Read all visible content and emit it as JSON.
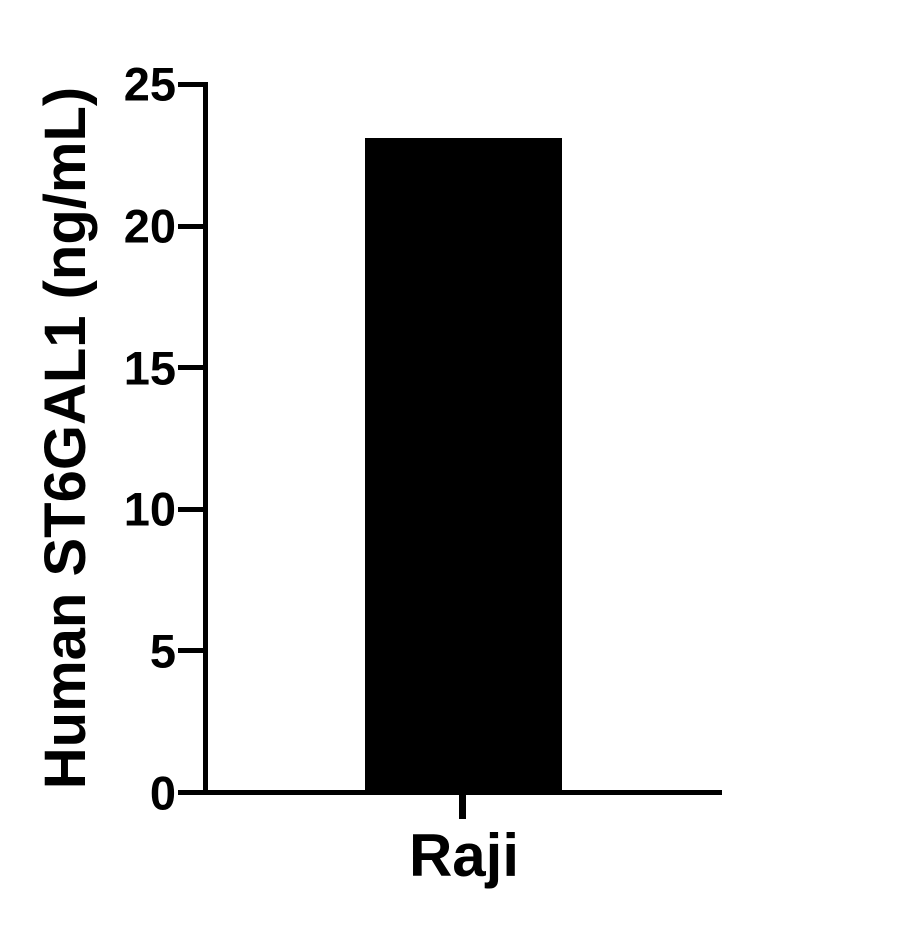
{
  "chart_data": {
    "type": "bar",
    "title": "",
    "xlabel": "",
    "ylabel": "Human ST6GAL1 (ng/mL)",
    "categories": [
      "Raji"
    ],
    "values": [
      23.1
    ],
    "ylim": [
      0,
      25
    ],
    "yticks": [
      0,
      5,
      10,
      15,
      20,
      25
    ],
    "bar_color": "#000000",
    "axis_color": "#000000",
    "text_color": "#000000",
    "background_color": "#ffffff",
    "grid": "off",
    "legend": "none"
  }
}
